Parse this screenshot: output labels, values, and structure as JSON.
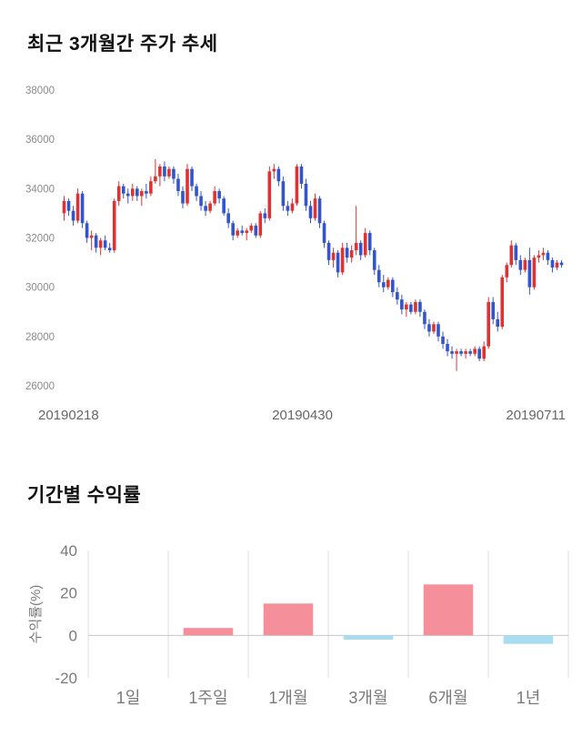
{
  "price_section": {
    "title": "최근 3개월간 주가 추세"
  },
  "returns_section": {
    "title": "기간별 수익률"
  },
  "chart_data": [
    {
      "type": "candlestick",
      "title": "최근 3개월간 주가 추세",
      "ylim": [
        26000,
        38000
      ],
      "yticks": [
        38000,
        36000,
        34000,
        32000,
        30000,
        28000,
        26000
      ],
      "xtick_labels": [
        "20190218",
        "20190430",
        "20190711"
      ],
      "up_color": "#dd3333",
      "down_color": "#3355cc",
      "candles": [
        [
          33000,
          33700,
          32700,
          33500
        ],
        [
          33500,
          33600,
          32900,
          33100
        ],
        [
          33100,
          33300,
          32500,
          32700
        ],
        [
          32700,
          34000,
          32600,
          33800
        ],
        [
          33800,
          33900,
          32400,
          32600
        ],
        [
          32600,
          32700,
          31800,
          32000
        ],
        [
          32000,
          32300,
          31500,
          32100
        ],
        [
          32100,
          32200,
          31400,
          31600
        ],
        [
          31600,
          32000,
          31300,
          31900
        ],
        [
          31900,
          32100,
          31500,
          31600
        ],
        [
          31600,
          31800,
          31400,
          31500
        ],
        [
          31500,
          33600,
          31400,
          33500
        ],
        [
          33500,
          34300,
          33300,
          34100
        ],
        [
          34100,
          34200,
          33600,
          33800
        ],
        [
          33800,
          34000,
          33400,
          33700
        ],
        [
          33700,
          34200,
          33500,
          34000
        ],
        [
          34000,
          34100,
          33500,
          33700
        ],
        [
          33700,
          34000,
          33300,
          33900
        ],
        [
          33900,
          34200,
          33600,
          33800
        ],
        [
          33800,
          34500,
          33700,
          34300
        ],
        [
          34300,
          35200,
          34200,
          34500
        ],
        [
          34500,
          35000,
          34100,
          34900
        ],
        [
          34900,
          35100,
          34300,
          34500
        ],
        [
          34500,
          34900,
          34400,
          34800
        ],
        [
          34800,
          34900,
          34200,
          34400
        ],
        [
          34400,
          34600,
          33700,
          33900
        ],
        [
          33900,
          34100,
          33200,
          33400
        ],
        [
          33400,
          35000,
          33300,
          34800
        ],
        [
          34800,
          34900,
          33900,
          34100
        ],
        [
          34100,
          34200,
          33500,
          33700
        ],
        [
          33700,
          33900,
          33100,
          33300
        ],
        [
          33300,
          33500,
          32900,
          33100
        ],
        [
          33100,
          33500,
          33000,
          33400
        ],
        [
          33400,
          34100,
          33300,
          33900
        ],
        [
          33900,
          34000,
          33400,
          33600
        ],
        [
          33600,
          33700,
          32900,
          33000
        ],
        [
          33000,
          33200,
          32400,
          32600
        ],
        [
          32600,
          32700,
          31900,
          32100
        ],
        [
          32100,
          32400,
          32000,
          32300
        ],
        [
          32300,
          32500,
          32100,
          32200
        ],
        [
          32200,
          32400,
          31900,
          32300
        ],
        [
          32300,
          32600,
          32200,
          32500
        ],
        [
          32500,
          32600,
          32000,
          32100
        ],
        [
          32100,
          33100,
          32000,
          33000
        ],
        [
          33000,
          33200,
          32600,
          32800
        ],
        [
          32800,
          34900,
          32700,
          34700
        ],
        [
          34700,
          35000,
          34400,
          34800
        ],
        [
          34800,
          34900,
          34100,
          34300
        ],
        [
          34300,
          34500,
          33100,
          33300
        ],
        [
          33300,
          33500,
          32900,
          33100
        ],
        [
          33100,
          33600,
          33000,
          33400
        ],
        [
          33400,
          35000,
          33300,
          34900
        ],
        [
          34900,
          35000,
          34000,
          34200
        ],
        [
          34200,
          34400,
          33100,
          33300
        ],
        [
          33300,
          33500,
          32600,
          32800
        ],
        [
          32800,
          33800,
          32700,
          33600
        ],
        [
          33600,
          33700,
          32400,
          32600
        ],
        [
          32600,
          32700,
          31600,
          31800
        ],
        [
          31800,
          31900,
          30900,
          31100
        ],
        [
          31100,
          31600,
          30800,
          31400
        ],
        [
          31400,
          31500,
          30400,
          30600
        ],
        [
          30600,
          31800,
          30500,
          31600
        ],
        [
          31600,
          31800,
          31000,
          31200
        ],
        [
          31200,
          31700,
          31000,
          31500
        ],
        [
          31500,
          33300,
          31300,
          31800
        ],
        [
          31800,
          31900,
          31100,
          31300
        ],
        [
          31300,
          32400,
          31200,
          32200
        ],
        [
          32200,
          32300,
          31300,
          31500
        ],
        [
          31500,
          31600,
          30500,
          30700
        ],
        [
          30700,
          30900,
          30000,
          30200
        ],
        [
          30200,
          30500,
          29800,
          30000
        ],
        [
          30000,
          30400,
          29900,
          30300
        ],
        [
          30300,
          30400,
          29600,
          29800
        ],
        [
          29800,
          30000,
          29300,
          29500
        ],
        [
          29500,
          29700,
          28900,
          29100
        ],
        [
          29100,
          29400,
          28800,
          29300
        ],
        [
          29300,
          29400,
          28900,
          29000
        ],
        [
          29000,
          29500,
          28900,
          29400
        ],
        [
          29400,
          29500,
          28800,
          29000
        ],
        [
          29000,
          29100,
          28300,
          28500
        ],
        [
          28500,
          28700,
          28000,
          28200
        ],
        [
          28200,
          28600,
          28100,
          28500
        ],
        [
          28500,
          28600,
          27800,
          28000
        ],
        [
          28000,
          28200,
          27500,
          27700
        ],
        [
          27700,
          27900,
          27200,
          27400
        ],
        [
          27400,
          27600,
          27100,
          27300
        ],
        [
          27300,
          27500,
          26600,
          27400
        ],
        [
          27400,
          27500,
          27200,
          27300
        ],
        [
          27300,
          27500,
          27100,
          27400
        ],
        [
          27400,
          27500,
          27200,
          27300
        ],
        [
          27300,
          27600,
          27200,
          27500
        ],
        [
          27500,
          27600,
          27000,
          27100
        ],
        [
          27100,
          27800,
          27000,
          27600
        ],
        [
          27600,
          29600,
          27500,
          29400
        ],
        [
          29400,
          29600,
          28500,
          28700
        ],
        [
          28700,
          29000,
          28200,
          28400
        ],
        [
          28400,
          30500,
          28300,
          30400
        ],
        [
          30400,
          31000,
          30200,
          30900
        ],
        [
          30900,
          31900,
          30800,
          31700
        ],
        [
          31700,
          31800,
          30900,
          31100
        ],
        [
          31100,
          31300,
          30500,
          30700
        ],
        [
          30700,
          31200,
          30600,
          31100
        ],
        [
          31100,
          31600,
          29700,
          30000
        ],
        [
          30000,
          31300,
          29900,
          31200
        ],
        [
          31200,
          31500,
          31000,
          31300
        ],
        [
          31300,
          31600,
          31100,
          31400
        ],
        [
          31400,
          31500,
          30900,
          31100
        ],
        [
          31100,
          31200,
          30600,
          30800
        ],
        [
          30800,
          31100,
          30700,
          31000
        ],
        [
          31000,
          31100,
          30800,
          30900
        ]
      ]
    },
    {
      "type": "bar",
      "title": "기간별 수익률",
      "ylabel": "수익률(%)",
      "categories": [
        "1일",
        "1주일",
        "1개월",
        "3개월",
        "6개월",
        "1년"
      ],
      "values": [
        0,
        3.5,
        15,
        -2,
        24,
        -4
      ],
      "yticks": [
        40,
        20,
        0,
        -20
      ],
      "ylim": [
        -20,
        40
      ],
      "positive_color": "#f5909a",
      "negative_color": "#a8ddf0",
      "grid_color": "#dcdcdc",
      "axis_text_color": "#7a7a7a"
    }
  ]
}
